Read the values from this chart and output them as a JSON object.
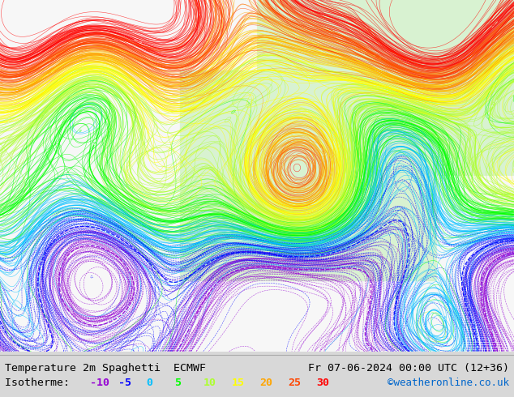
{
  "title_left": "Temperature 2m Spaghetti  ECMWF",
  "title_right": "Fr 07-06-2024 00:00 UTC (12+36)",
  "watermark": "©weatheronline.co.uk",
  "footer_bg": "#d8d8d8",
  "isotherm_values": [
    -10,
    -5,
    0,
    5,
    10,
    15,
    20,
    25,
    30
  ],
  "isotherm_colors": [
    "#9400d3",
    "#0000ff",
    "#00bfff",
    "#00ff00",
    "#adff2f",
    "#ffff00",
    "#ffa500",
    "#ff4500",
    "#ff0000"
  ],
  "iso_labels": [
    "-10",
    "-5",
    "0",
    "5",
    "10",
    "15",
    "20",
    "25",
    "30"
  ],
  "figsize": [
    6.34,
    4.9
  ],
  "dpi": 100
}
